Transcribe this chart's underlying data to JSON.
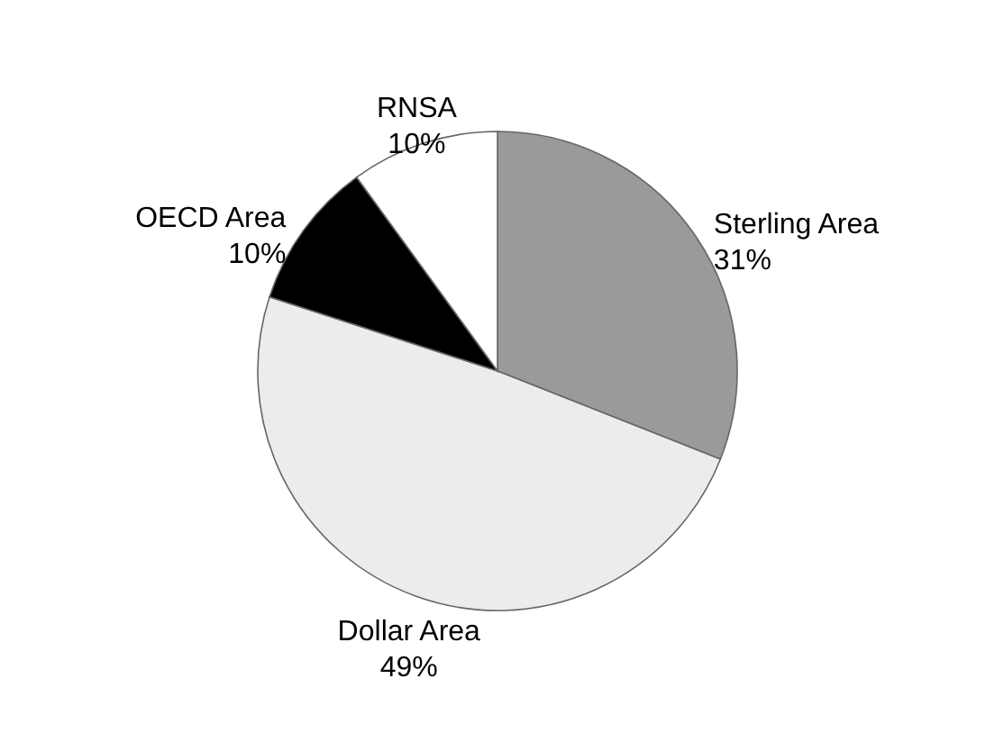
{
  "chart_data": {
    "type": "pie",
    "categories": [
      "Sterling Area",
      "Dollar Area",
      "OECD Area",
      "RNSA"
    ],
    "values": [
      31,
      49,
      10,
      10
    ],
    "value_labels": [
      "31%",
      "49%",
      "10%",
      "10%"
    ],
    "colors": [
      "#9a9a9a",
      "#ececec",
      "#000000",
      "#ffffff"
    ]
  }
}
